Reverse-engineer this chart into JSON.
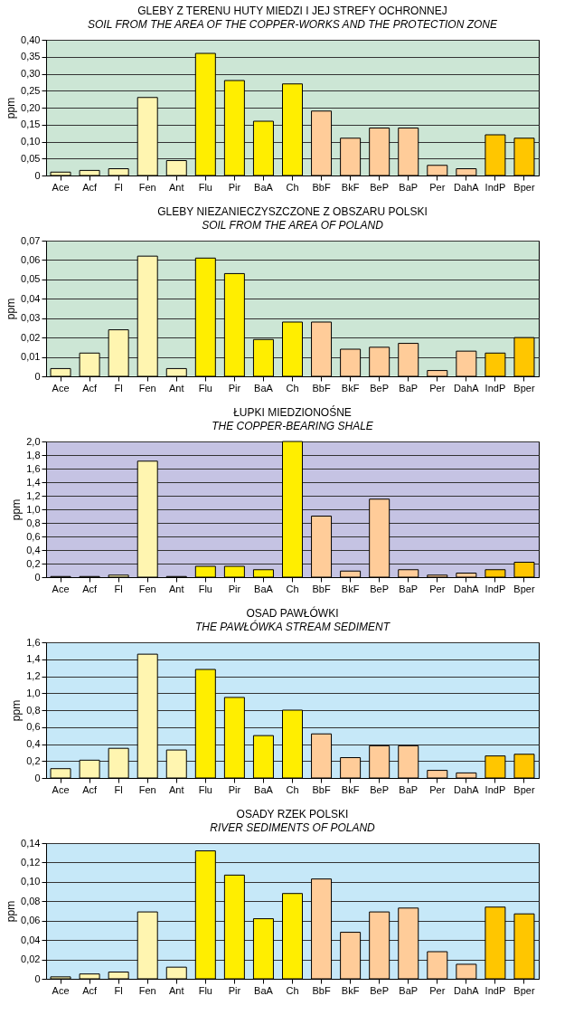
{
  "chart_data": [
    {
      "type": "bar",
      "title": "GLEBY Z TERENU HUTY MIEDZI I JEJ STREFY OCHRONNEJ",
      "subtitle": "SOIL FROM THE AREA OF THE COPPER-WORKS AND THE PROTECTION ZONE",
      "ylabel": "ppm",
      "categories": [
        "Ace",
        "Acf",
        "Fl",
        "Fen",
        "Ant",
        "Flu",
        "Pir",
        "BaA",
        "Ch",
        "BbF",
        "BkF",
        "BeP",
        "BaP",
        "Per",
        "DahA",
        "IndP",
        "Bper"
      ],
      "values": [
        0.01,
        0.015,
        0.02,
        0.23,
        0.044,
        0.36,
        0.28,
        0.16,
        0.27,
        0.19,
        0.11,
        0.14,
        0.14,
        0.03,
        0.02,
        0.12,
        0.11
      ],
      "colors": [
        "#fff5b0",
        "#fff5b0",
        "#fff5b0",
        "#fff5b0",
        "#fff5b0",
        "#ffee00",
        "#ffee00",
        "#ffee00",
        "#ffee00",
        "#ffcc99",
        "#ffcc99",
        "#ffcc99",
        "#ffcc99",
        "#ffcc99",
        "#ffcc99",
        "#ffc600",
        "#ffc600"
      ],
      "ylim": [
        0,
        0.4
      ],
      "yticks": [
        0,
        {
          "value": 0.05,
          "label": "0,05"
        },
        {
          "value": 0.1,
          "label": "0,10"
        },
        {
          "value": 0.15,
          "label": "0,15"
        },
        {
          "value": 0.2,
          "label": "0,20"
        },
        {
          "value": 0.25,
          "label": "0,25"
        },
        {
          "value": 0.3,
          "label": "0,30"
        },
        {
          "value": 0.35,
          "label": "0,35"
        },
        {
          "value": 0.4,
          "label": "0,40"
        }
      ],
      "grid": "y"
    },
    {
      "type": "bar",
      "title": "GLEBY NIEZANIECZYSZCZONE Z OBSZARU POLSKI",
      "subtitle": "SOIL FROM THE AREA OF POLAND",
      "ylabel": "ppm",
      "categories": [
        "Ace",
        "Acf",
        "Fl",
        "Fen",
        "Ant",
        "Flu",
        "Pir",
        "BaA",
        "Ch",
        "BbF",
        "BkF",
        "BeP",
        "BaP",
        "Per",
        "DahA",
        "IndP",
        "Bper"
      ],
      "values": [
        0.004,
        0.012,
        0.024,
        0.062,
        0.004,
        0.061,
        0.053,
        0.019,
        0.028,
        0.028,
        0.014,
        0.015,
        0.017,
        0.003,
        0.013,
        0.012,
        0.02
      ],
      "colors": [
        "#fff5b0",
        "#fff5b0",
        "#fff5b0",
        "#fff5b0",
        "#fff5b0",
        "#ffee00",
        "#ffee00",
        "#ffee00",
        "#ffee00",
        "#ffcc99",
        "#ffcc99",
        "#ffcc99",
        "#ffcc99",
        "#ffcc99",
        "#ffcc99",
        "#ffc600",
        "#ffc600"
      ],
      "ylim": [
        0,
        0.07
      ],
      "yticks": [
        0,
        {
          "value": 0.01,
          "label": "0,01"
        },
        {
          "value": 0.02,
          "label": "0,02"
        },
        {
          "value": 0.03,
          "label": "0,03"
        },
        {
          "value": 0.04,
          "label": "0,04"
        },
        {
          "value": 0.05,
          "label": "0,05"
        },
        {
          "value": 0.06,
          "label": "0,06"
        },
        {
          "value": 0.07,
          "label": "0,07"
        }
      ],
      "grid": "y"
    },
    {
      "type": "bar",
      "title": "ŁUPKI MIEDZIONOŚNE",
      "subtitle": "THE COPPER-BEARING SHALE",
      "ylabel": "ppm",
      "categories": [
        "Ace",
        "Acf",
        "Fl",
        "Fen",
        "Ant",
        "Flu",
        "Pir",
        "BaA",
        "Ch",
        "BbF",
        "BkF",
        "BeP",
        "BaP",
        "Per",
        "DahA",
        "IndP",
        "Bper"
      ],
      "values": [
        0.01,
        0.01,
        0.03,
        1.71,
        0.01,
        0.16,
        0.16,
        0.11,
        2.0,
        0.9,
        0.09,
        1.15,
        0.11,
        0.03,
        0.06,
        0.11,
        0.22
      ],
      "colors": [
        "#fff5b0",
        "#fff5b0",
        "#fff5b0",
        "#fff5b0",
        "#fff5b0",
        "#ffee00",
        "#ffee00",
        "#ffee00",
        "#ffee00",
        "#ffcc99",
        "#ffcc99",
        "#ffcc99",
        "#ffcc99",
        "#ffcc99",
        "#ffcc99",
        "#ffc600",
        "#ffc600"
      ],
      "ylim": [
        0,
        2.0
      ],
      "yticks": [
        0,
        {
          "value": 0.2,
          "label": "0,2"
        },
        {
          "value": 0.4,
          "label": "0,4"
        },
        {
          "value": 0.6,
          "label": "0,6"
        },
        {
          "value": 0.8,
          "label": "0,8"
        },
        {
          "value": 1.0,
          "label": "1,0"
        },
        {
          "value": 1.2,
          "label": "1,2"
        },
        {
          "value": 1.4,
          "label": "1,4"
        },
        {
          "value": 1.6,
          "label": "1,6"
        },
        {
          "value": 1.8,
          "label": "1,8"
        },
        {
          "value": 2.0,
          "label": "2,0"
        }
      ],
      "grid": "y"
    },
    {
      "type": "bar",
      "title": "OSAD PAWŁÓWKI",
      "subtitle": "THE PAWŁÓWKA STREAM SEDIMENT",
      "ylabel": "ppm",
      "categories": [
        "Ace",
        "Acf",
        "Fl",
        "Fen",
        "Ant",
        "Flu",
        "Pir",
        "BaA",
        "Ch",
        "BbF",
        "BkF",
        "BeP",
        "BaP",
        "Per",
        "DahA",
        "IndP",
        "Bper"
      ],
      "values": [
        0.11,
        0.21,
        0.35,
        1.46,
        0.33,
        1.28,
        0.95,
        0.5,
        0.8,
        0.52,
        0.24,
        0.38,
        0.38,
        0.09,
        0.06,
        0.26,
        0.28
      ],
      "colors": [
        "#fff5b0",
        "#fff5b0",
        "#fff5b0",
        "#fff5b0",
        "#fff5b0",
        "#ffee00",
        "#ffee00",
        "#ffee00",
        "#ffee00",
        "#ffcc99",
        "#ffcc99",
        "#ffcc99",
        "#ffcc99",
        "#ffcc99",
        "#ffcc99",
        "#ffc600",
        "#ffc600"
      ],
      "ylim": [
        0,
        1.6
      ],
      "yticks": [
        0,
        {
          "value": 0.2,
          "label": "0,2"
        },
        {
          "value": 0.4,
          "label": "0,4"
        },
        {
          "value": 0.6,
          "label": "0,6"
        },
        {
          "value": 0.8,
          "label": "0,8"
        },
        {
          "value": 1.0,
          "label": "1,0"
        },
        {
          "value": 1.2,
          "label": "1,2"
        },
        {
          "value": 1.4,
          "label": "1,4"
        },
        {
          "value": 1.6,
          "label": "1,6"
        }
      ],
      "grid": "y"
    },
    {
      "type": "bar",
      "title": "OSADY RZEK POLSKI",
      "subtitle": "RIVER SEDIMENTS OF POLAND",
      "ylabel": "ppm",
      "categories": [
        "Ace",
        "Acf",
        "Fl",
        "Fen",
        "Ant",
        "Flu",
        "Pir",
        "BaA",
        "Ch",
        "BbF",
        "BkF",
        "BeP",
        "BaP",
        "Per",
        "DahA",
        "IndP",
        "Bper"
      ],
      "values": [
        0.002,
        0.005,
        0.007,
        0.069,
        0.012,
        0.132,
        0.107,
        0.062,
        0.088,
        0.103,
        0.048,
        0.069,
        0.073,
        0.028,
        0.015,
        0.074,
        0.067
      ],
      "colors": [
        "#fff5b0",
        "#fff5b0",
        "#fff5b0",
        "#fff5b0",
        "#fff5b0",
        "#ffee00",
        "#ffee00",
        "#ffee00",
        "#ffee00",
        "#ffcc99",
        "#ffcc99",
        "#ffcc99",
        "#ffcc99",
        "#ffcc99",
        "#ffcc99",
        "#ffc600",
        "#ffc600"
      ],
      "ylim": [
        0,
        0.14
      ],
      "yticks": [
        0,
        {
          "value": 0.02,
          "label": "0,02"
        },
        {
          "value": 0.04,
          "label": "0,04"
        },
        {
          "value": 0.06,
          "label": "0,06"
        },
        {
          "value": 0.08,
          "label": "0,08"
        },
        {
          "value": 0.1,
          "label": "0,10"
        },
        {
          "value": 0.12,
          "label": "0,12"
        },
        {
          "value": 0.14,
          "label": "0,14"
        }
      ],
      "grid": "y"
    }
  ]
}
